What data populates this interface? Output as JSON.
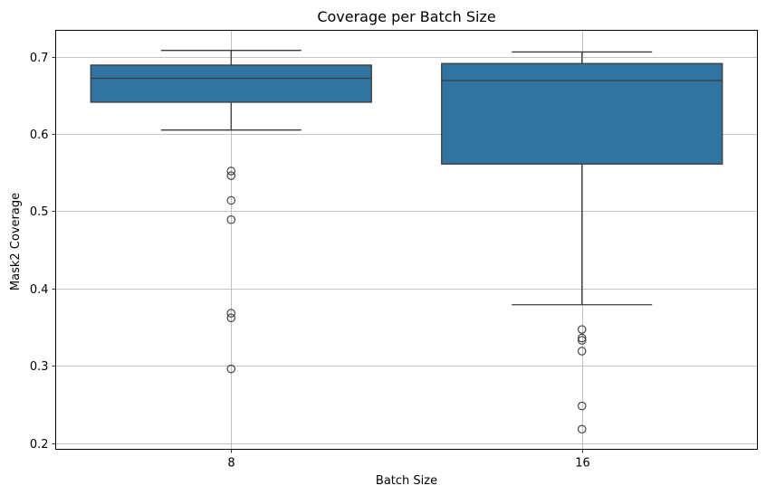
{
  "chart_data": {
    "type": "box",
    "title": "Coverage per Batch Size",
    "xlabel": "Batch Size",
    "ylabel": "Mask2 Coverage",
    "categories": [
      "8",
      "16"
    ],
    "ylim": [
      0.192,
      0.734
    ],
    "yticks": [
      0.2,
      0.3,
      0.4,
      0.5,
      0.6,
      0.7
    ],
    "ytick_labels": [
      "0.2",
      "0.3",
      "0.4",
      "0.5",
      "0.6",
      "0.7"
    ],
    "grid": true,
    "box_color": "#3274a1",
    "line_color": "#3b3b3b",
    "boxes": [
      {
        "category": "8",
        "whisker_low": 0.605,
        "q1": 0.641,
        "median": 0.672,
        "q3": 0.689,
        "whisker_high": 0.708,
        "outliers": [
          0.552,
          0.546,
          0.514,
          0.489,
          0.368,
          0.362,
          0.296
        ]
      },
      {
        "category": "16",
        "whisker_low": 0.379,
        "q1": 0.561,
        "median": 0.669,
        "q3": 0.691,
        "whisker_high": 0.706,
        "outliers": [
          0.347,
          0.336,
          0.333,
          0.319,
          0.248,
          0.218
        ]
      }
    ]
  }
}
